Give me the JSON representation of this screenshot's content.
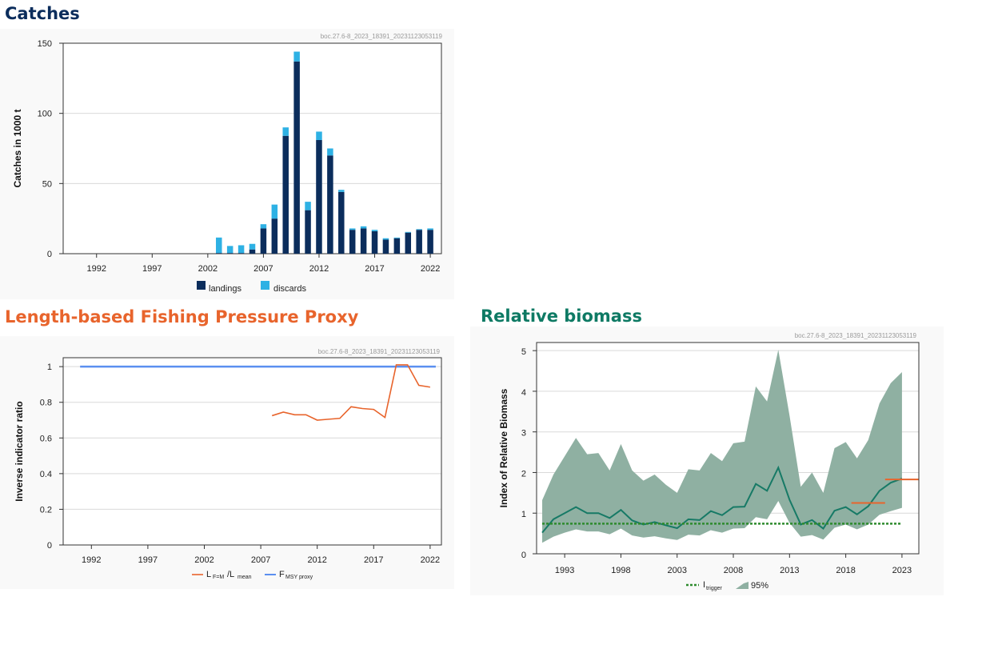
{
  "colors": {
    "title_dark": "#0b2d5c",
    "title_orange": "#e8642c",
    "title_teal": "#0e7a64",
    "landings": "#0b2d5c",
    "discards": "#2eb1e4",
    "lratio": "#e8642c",
    "fmsy": "#5b8ff0",
    "biomass": "#177a66",
    "ci": "#8fb0a2",
    "itrigger": "#2e8b2e",
    "advice": "#e8642c"
  },
  "panels": {
    "catches": {
      "title": "Catches"
    },
    "length": {
      "title": "Length-based Fishing Pressure Proxy"
    },
    "biomass": {
      "title": "Relative biomass"
    }
  },
  "chart_data": [
    {
      "id": "catches",
      "type": "bar",
      "stacked": true,
      "watermark": "boc.27.6-8_2023_18391_20231123053119",
      "ylabel": "Catches in 1000 t",
      "xlim": [
        1989,
        2023
      ],
      "ylim": [
        0,
        150
      ],
      "xticks": [
        1992,
        1997,
        2002,
        2007,
        2012,
        2017,
        2022
      ],
      "yticks": [
        0,
        50,
        100,
        150
      ],
      "x": [
        2003,
        2004,
        2005,
        2006,
        2007,
        2008,
        2009,
        2010,
        2011,
        2012,
        2013,
        2014,
        2015,
        2016,
        2017,
        2018,
        2019,
        2020,
        2021,
        2022
      ],
      "series": [
        {
          "name": "landings",
          "values": [
            0.5,
            0.5,
            0.5,
            3,
            18,
            25,
            84,
            137,
            31,
            81,
            70,
            44,
            17,
            18,
            16,
            10,
            11,
            15,
            17,
            17
          ]
        },
        {
          "name": "discards",
          "values": [
            11,
            5,
            5.5,
            4,
            3,
            10,
            6,
            7,
            6,
            6,
            5,
            1.5,
            1,
            1.5,
            1,
            1,
            0.5,
            0.5,
            0.5,
            1
          ]
        }
      ],
      "legend": {
        "items": [
          "landings",
          "discards"
        ],
        "position": "bottom"
      }
    },
    {
      "id": "length",
      "type": "line",
      "watermark": "boc.27.6-8_2023_18391_20231123053119",
      "ylabel": "Inverse indicator ratio",
      "xlim": [
        1989.5,
        2023
      ],
      "ylim": [
        0,
        1.05
      ],
      "xticks": [
        1992,
        1997,
        2002,
        2007,
        2012,
        2017,
        2022
      ],
      "yticks": [
        "0",
        "0.2",
        "0.4",
        "0.6",
        "0.8",
        "1"
      ],
      "series": [
        {
          "name": "L_F=M/L_mean",
          "x": [
            2008,
            2009,
            2010,
            2011,
            2012,
            2013,
            2014,
            2015,
            2016,
            2017,
            2018,
            2019,
            2020,
            2021,
            2022
          ],
          "y": [
            0.725,
            0.745,
            0.73,
            0.73,
            0.7,
            0.705,
            0.71,
            0.775,
            0.765,
            0.76,
            0.715,
            1.01,
            1.01,
            0.895,
            0.885
          ]
        },
        {
          "name": "F_MSY proxy",
          "x": [
            1991,
            2022.5
          ],
          "y": [
            1,
            1
          ]
        }
      ],
      "legend": {
        "items": [
          {
            "main": "L",
            "sub1": "F=M",
            "mid": "/L",
            "sub2": "mean"
          },
          {
            "main": "F",
            "sub1": "MSY proxy"
          }
        ],
        "position": "bottom"
      }
    },
    {
      "id": "biomass",
      "type": "area",
      "watermark": "boc.27.6-8_2023_18391_20231123053119",
      "ylabel": "Index of Relative Biomass",
      "xlim": [
        1990.5,
        2024.5
      ],
      "ylim": [
        0,
        5.2
      ],
      "xticks": [
        1993,
        1998,
        2003,
        2008,
        2013,
        2018,
        2023
      ],
      "yticks": [
        0,
        1,
        2,
        3,
        4,
        5
      ],
      "x": [
        1991,
        1992,
        1993,
        1994,
        1995,
        1996,
        1997,
        1998,
        1999,
        2000,
        2001,
        2002,
        2003,
        2004,
        2005,
        2006,
        2007,
        2008,
        2009,
        2010,
        2011,
        2012,
        2013,
        2014,
        2015,
        2016,
        2017,
        2018,
        2019,
        2020,
        2021,
        2022,
        2023
      ],
      "index": [
        0.52,
        0.85,
        1.0,
        1.15,
        1.0,
        1.0,
        0.88,
        1.08,
        0.82,
        0.72,
        0.78,
        0.7,
        0.63,
        0.85,
        0.83,
        1.05,
        0.95,
        1.15,
        1.16,
        1.72,
        1.55,
        2.12,
        1.33,
        0.72,
        0.83,
        0.62,
        1.06,
        1.15,
        0.97,
        1.17,
        1.55,
        1.75,
        1.85
      ],
      "ci_upper": [
        1.32,
        1.95,
        2.4,
        2.85,
        2.45,
        2.48,
        2.05,
        2.7,
        2.05,
        1.8,
        1.95,
        1.7,
        1.5,
        2.08,
        2.05,
        2.48,
        2.28,
        2.72,
        2.76,
        4.12,
        3.75,
        5.02,
        3.4,
        1.65,
        2.0,
        1.5,
        2.6,
        2.75,
        2.35,
        2.8,
        3.7,
        4.2,
        4.47
      ],
      "ci_lower": [
        0.27,
        0.42,
        0.52,
        0.6,
        0.55,
        0.55,
        0.48,
        0.62,
        0.45,
        0.4,
        0.43,
        0.38,
        0.34,
        0.47,
        0.45,
        0.58,
        0.52,
        0.62,
        0.63,
        0.9,
        0.85,
        1.3,
        0.76,
        0.42,
        0.46,
        0.35,
        0.64,
        0.72,
        0.6,
        0.72,
        0.96,
        1.05,
        1.13
      ],
      "itrigger": 0.74,
      "advice_segments": [
        {
          "x": [
            2018.5,
            2021.5
          ],
          "y": 1.25
        },
        {
          "x": [
            2021.5,
            2024.5
          ],
          "y": 1.83
        }
      ],
      "legend": {
        "items": [
          {
            "main": "I",
            "sub1": "trigger"
          },
          {
            "main": "95%"
          }
        ],
        "position": "bottom"
      }
    }
  ]
}
